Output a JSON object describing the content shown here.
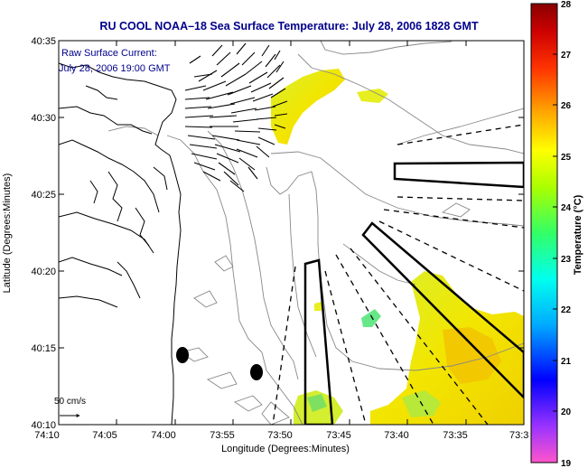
{
  "title": "RU COOL  NOAA–18  Sea Surface Temperature:  July 28, 2006 1828 GMT",
  "annotation": {
    "line1": "Raw Surface Current:",
    "line2": "July 28, 2006 19:00 GMT"
  },
  "scale_label": "50 cm/s",
  "x_axis": {
    "label": "Longitude (Degrees:Minutes)",
    "ticks": [
      "74:10",
      "74:05",
      "74:00",
      "73:55",
      "73:50",
      "73:45",
      "73:40",
      "73:35",
      "73:3"
    ]
  },
  "y_axis": {
    "label": "Latitude (Degrees:Minutes)",
    "ticks": [
      "40:35",
      "40:30",
      "40:25",
      "40:20",
      "40:15",
      "40:10"
    ]
  },
  "colorbar": {
    "label": "Temperature (°C)",
    "ticks": [
      "28",
      "27",
      "26",
      "25",
      "24",
      "23",
      "22",
      "21",
      "20",
      "19"
    ],
    "range": [
      19,
      28
    ],
    "colors": [
      "#ff55cc",
      "#9933ff",
      "#0000ff",
      "#00aaff",
      "#00ffee",
      "#33ff66",
      "#aaff00",
      "#ffff00",
      "#ffaa00",
      "#ff3300",
      "#cc0000",
      "#880000"
    ]
  },
  "colors": {
    "title": "#00008b",
    "contour": "#888888",
    "sst_main": "#e8e800",
    "sst_warm": "#f0c800"
  }
}
